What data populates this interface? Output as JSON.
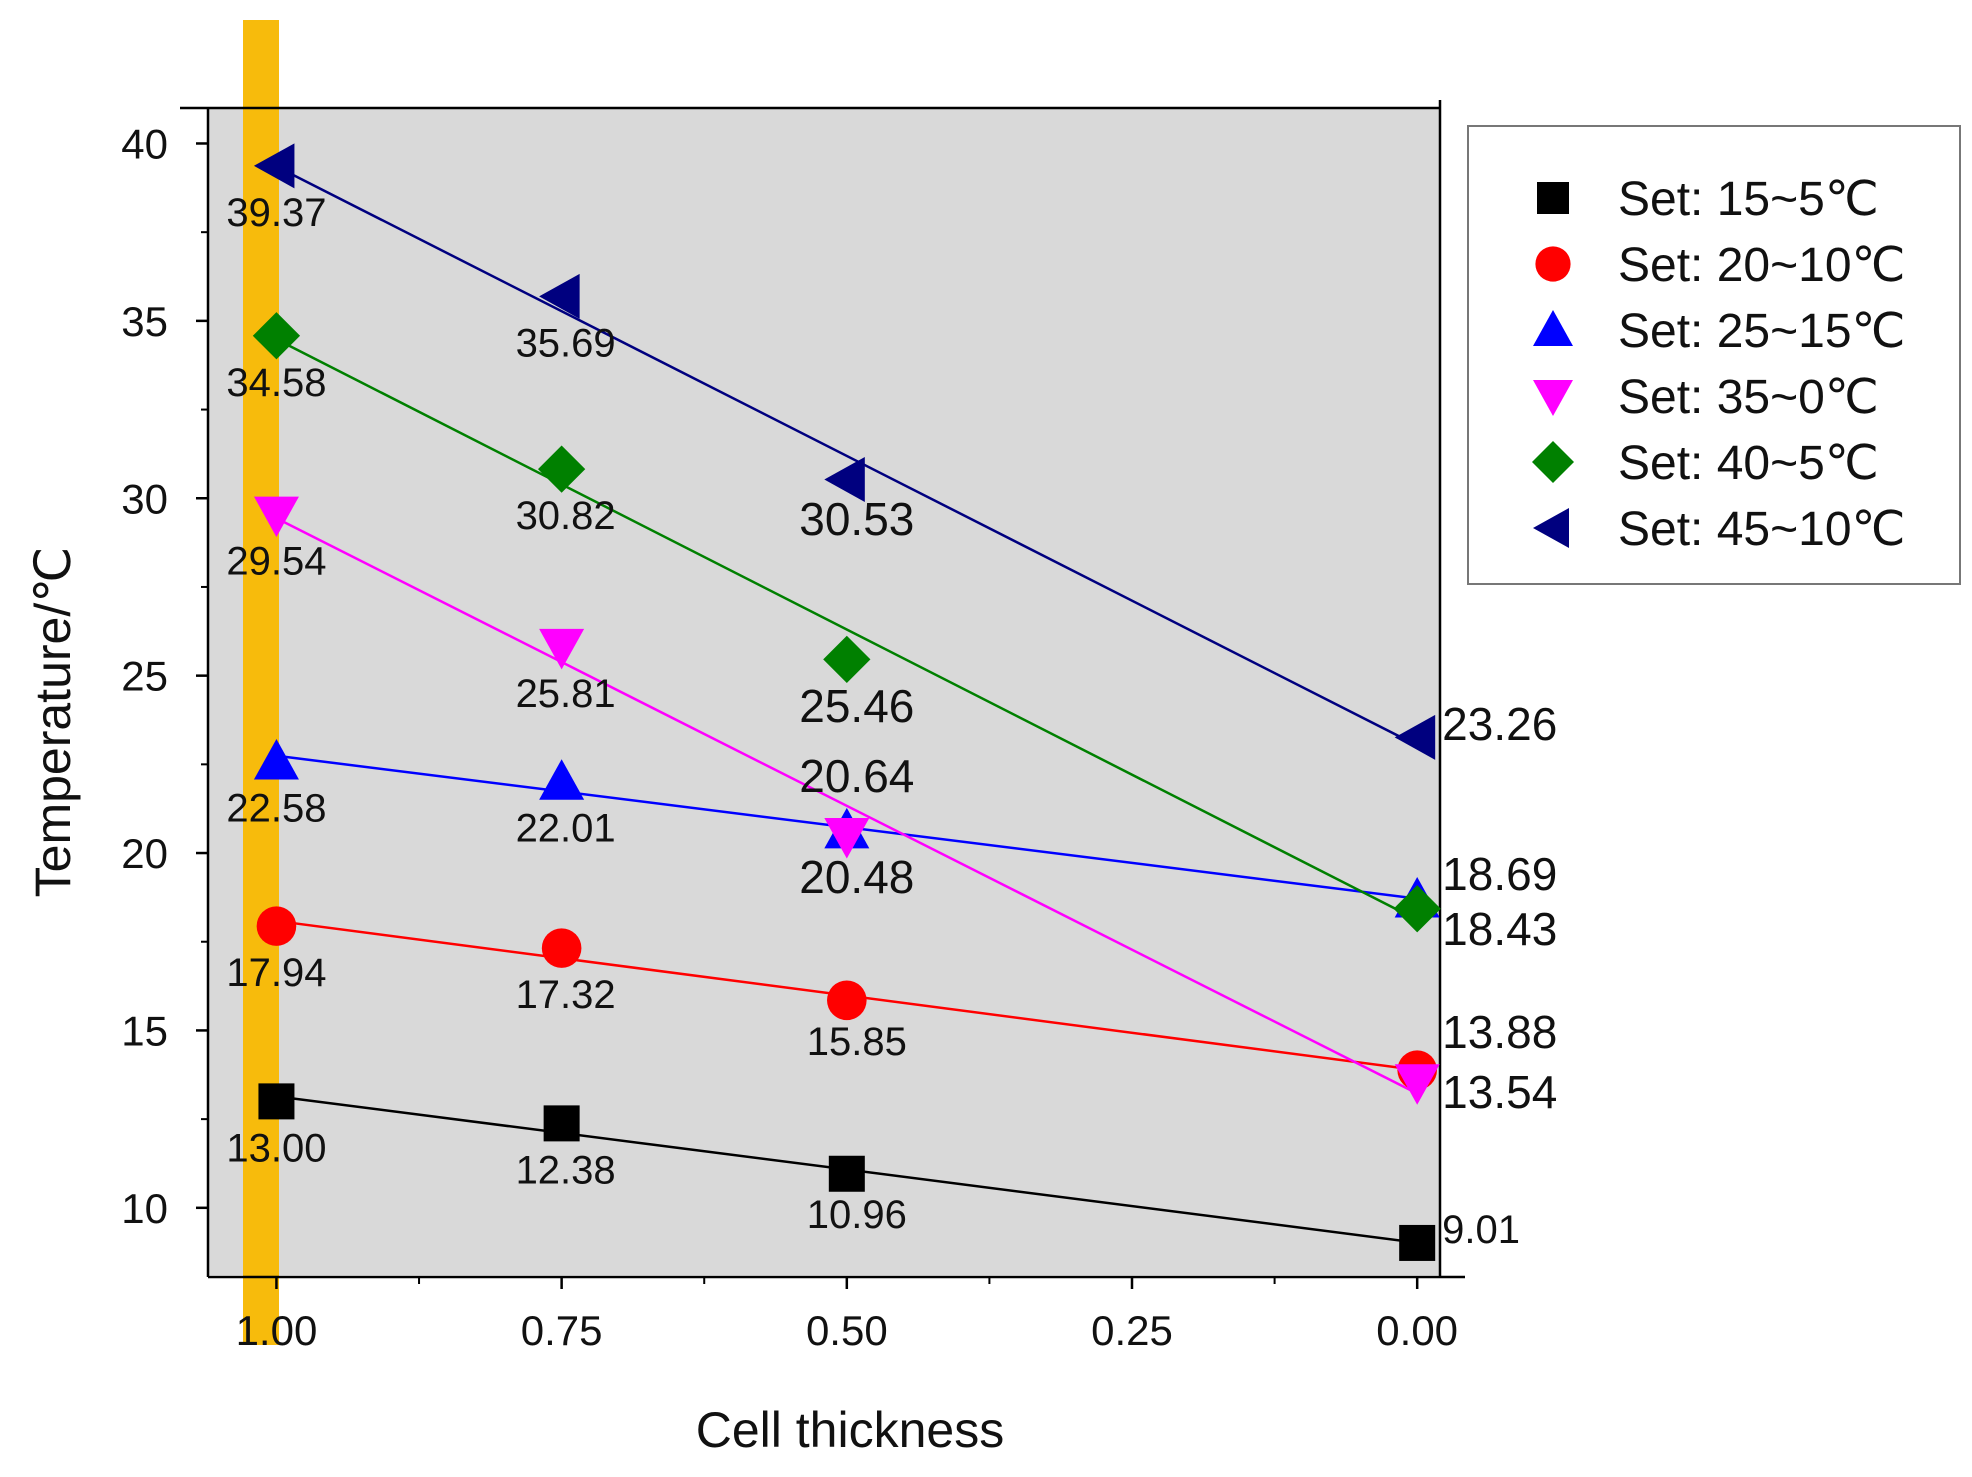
{
  "chart_data": {
    "type": "line",
    "title": "",
    "xlabel": "Cell thickness",
    "ylabel": "Temperature/℃",
    "x": [
      1.0,
      0.75,
      0.5,
      0.0
    ],
    "xlim": [
      1.06,
      -0.02
    ],
    "ylim": [
      8.05,
      41.0
    ],
    "x_reversed": true,
    "xticks": [
      {
        "value": 1.0,
        "label": "1.00"
      },
      {
        "value": 0.75,
        "label": "0.75"
      },
      {
        "value": 0.5,
        "label": "0.50"
      },
      {
        "value": 0.25,
        "label": "0.25"
      },
      {
        "value": 0.0,
        "label": "0.00"
      }
    ],
    "yticks": [
      {
        "value": 10,
        "label": "10"
      },
      {
        "value": 15,
        "label": "15"
      },
      {
        "value": 20,
        "label": "20"
      },
      {
        "value": 25,
        "label": "25"
      },
      {
        "value": 30,
        "label": "30"
      },
      {
        "value": 35,
        "label": "35"
      },
      {
        "value": 40,
        "label": "40"
      }
    ],
    "highlight_band_x": 1.0,
    "plot_background": "#d9d9d9",
    "band_color": "#f7bb0c",
    "legend_position": "right",
    "series": [
      {
        "name": "Set: 15~5℃",
        "color": "#000000",
        "marker": "square",
        "values": [
          13.0,
          12.38,
          10.96,
          9.01
        ],
        "labels": [
          "13.00",
          "12.38",
          "10.96",
          "9.01"
        ]
      },
      {
        "name": "Set: 20~10℃",
        "color": "#ff0000",
        "marker": "circle",
        "values": [
          17.94,
          17.32,
          15.85,
          13.88
        ],
        "labels": [
          "17.94",
          "17.32",
          "15.85",
          "13.88"
        ]
      },
      {
        "name": "Set: 25~15℃",
        "color": "#0000ff",
        "marker": "triangle-up",
        "values": [
          22.58,
          22.01,
          20.64,
          18.69
        ],
        "labels": [
          "22.58",
          "22.01",
          "20.64",
          "18.69"
        ]
      },
      {
        "name": "Set: 35~0℃",
        "color": "#ff00ff",
        "marker": "triangle-down",
        "values": [
          29.54,
          25.81,
          20.48,
          13.54
        ],
        "labels": [
          "29.54",
          "25.81",
          "20.48",
          "13.54"
        ]
      },
      {
        "name": "Set: 40~5℃",
        "color": "#008000",
        "marker": "diamond",
        "values": [
          34.58,
          30.82,
          25.46,
          18.43
        ],
        "labels": [
          "34.58",
          "30.82",
          "25.46",
          "18.43"
        ]
      },
      {
        "name": "Set: 45~10℃",
        "color": "#00007f",
        "marker": "triangle-left",
        "values": [
          39.37,
          35.69,
          30.53,
          23.26
        ],
        "labels": [
          "39.37",
          "35.69",
          "30.53",
          "23.26"
        ]
      }
    ]
  }
}
